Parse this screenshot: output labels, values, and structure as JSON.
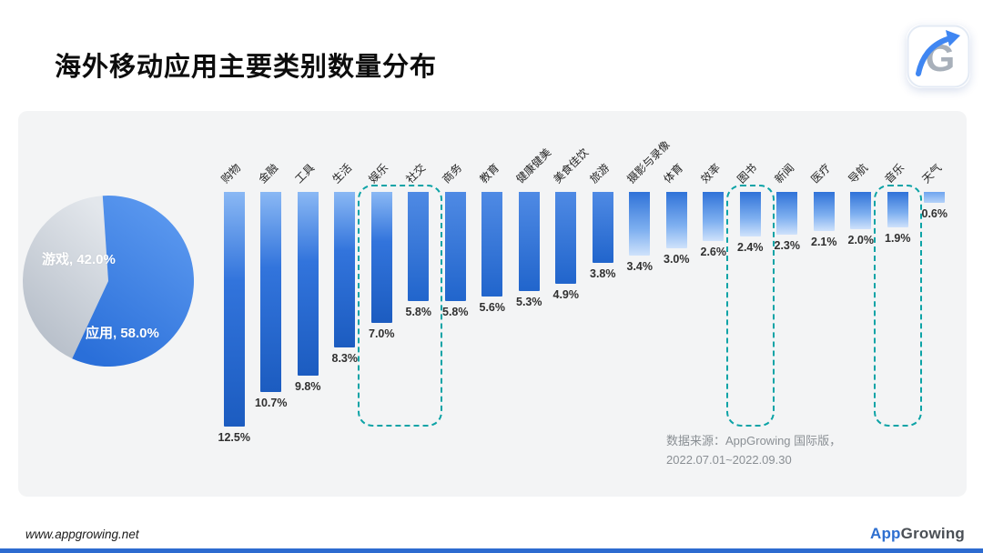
{
  "header": {
    "title": "海外移动应用主要类别数量分布"
  },
  "logo_badge": {
    "letter": "G"
  },
  "panel": {
    "source_note": [
      "数据来源：AppGrowing 国际版，",
      "2022.07.01~2022.09.30"
    ]
  },
  "footer": {
    "url": "www.appgrowing.net",
    "brand_app": "App",
    "brand_growing": "Growing"
  },
  "colors": {
    "accent_blue": "#2165cc",
    "bar_light": "#9cc4f7",
    "highlight_teal": "#0ca3a6",
    "pie_gray": "#b7bfc9",
    "pie_blue": "#2a6fd9",
    "panel_bg": "#f3f4f5",
    "bottom_strip": "#2d6bd0"
  },
  "chart_data": [
    {
      "type": "pie",
      "rotation_deg": 205,
      "legend_position": "on-slice",
      "slices": [
        {
          "label": "游戏",
          "value": 42.0,
          "display": "游戏, 42.0%",
          "color": "#b4bcc7",
          "color_light": "#e3e7ec"
        },
        {
          "label": "应用",
          "value": 58.0,
          "display": "应用, 58.0%",
          "color": "#2a6fd9",
          "color_light": "#5d9af0"
        }
      ]
    },
    {
      "type": "bar",
      "orientation": "vertical-hanging-from-top",
      "unit": "%",
      "grid": false,
      "categories": [
        "购物",
        "金融",
        "工具",
        "生活",
        "娱乐",
        "社交",
        "商务",
        "教育",
        "健康健美",
        "美食佳饮",
        "旅游",
        "摄影与录像",
        "体育",
        "效率",
        "图书",
        "新闻",
        "医疗",
        "导航",
        "音乐",
        "天气"
      ],
      "values": [
        12.5,
        10.7,
        9.8,
        8.3,
        7.0,
        5.8,
        5.8,
        5.6,
        5.3,
        4.9,
        3.8,
        3.4,
        3.0,
        2.6,
        2.4,
        2.3,
        2.1,
        2.0,
        1.9,
        0.6
      ],
      "value_labels": [
        "12.5%",
        "10.7%",
        "9.8%",
        "8.3%",
        "7.0%",
        "5.8%",
        "5.8%",
        "5.6%",
        "5.3%",
        "4.9%",
        "3.8%",
        "3.4%",
        "3.0%",
        "2.6%",
        "2.4%",
        "2.3%",
        "2.1%",
        "2.0%",
        "1.9%",
        "0.6%"
      ],
      "highlighted_categories": [
        [
          "娱乐",
          "社交"
        ],
        [
          "图书"
        ],
        [
          "音乐"
        ]
      ]
    }
  ]
}
